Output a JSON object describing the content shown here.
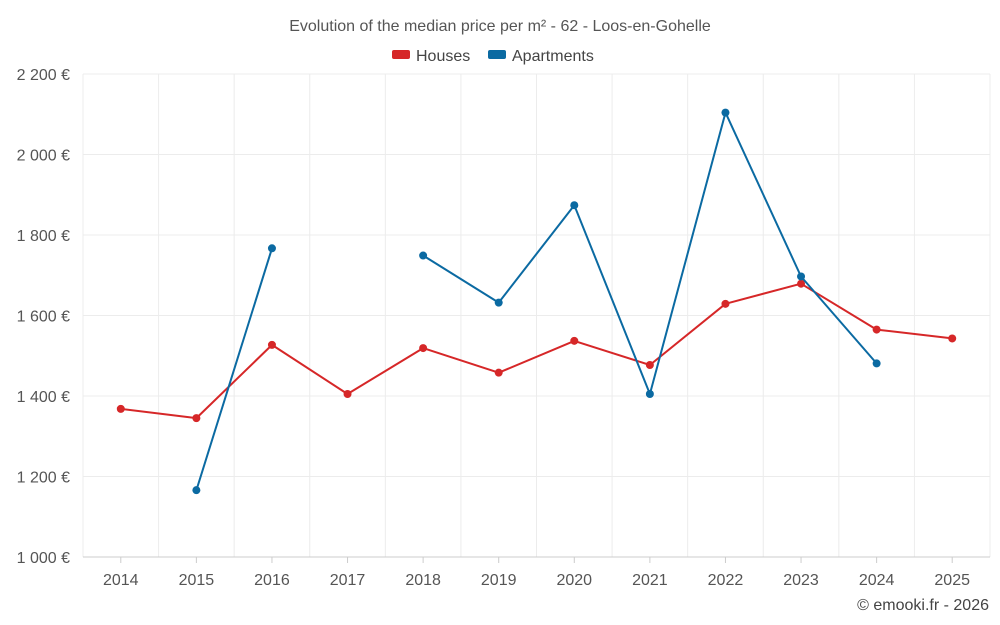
{
  "chart_data": {
    "type": "line",
    "title": "Evolution of the median price per m² - 62 - Loos-en-Gohelle",
    "xlabel": "",
    "ylabel": "",
    "categories": [
      "2014",
      "2015",
      "2016",
      "2017",
      "2018",
      "2019",
      "2020",
      "2021",
      "2022",
      "2023",
      "2024",
      "2025"
    ],
    "y_ticks": [
      1000,
      1200,
      1400,
      1600,
      1800,
      2000,
      2200
    ],
    "y_tick_labels": [
      "1 000 €",
      "1 200 €",
      "1 400 €",
      "1 600 €",
      "1 800 €",
      "2 000 €",
      "2 200 €"
    ],
    "ylim": [
      1000,
      2200
    ],
    "grid": true,
    "legend_position": "top-center",
    "series": [
      {
        "name": "Houses",
        "color": "#d62728",
        "values": [
          1368,
          1345,
          1527,
          1405,
          1519,
          1458,
          1537,
          1477,
          1629,
          1679,
          1565,
          1543
        ]
      },
      {
        "name": "Apartments",
        "color": "#0b6aa2",
        "values": [
          null,
          1166,
          1767,
          null,
          1749,
          1632,
          1874,
          1405,
          2104,
          1697,
          1481,
          null
        ]
      }
    ],
    "credit": "© emooki.fr - 2026"
  }
}
